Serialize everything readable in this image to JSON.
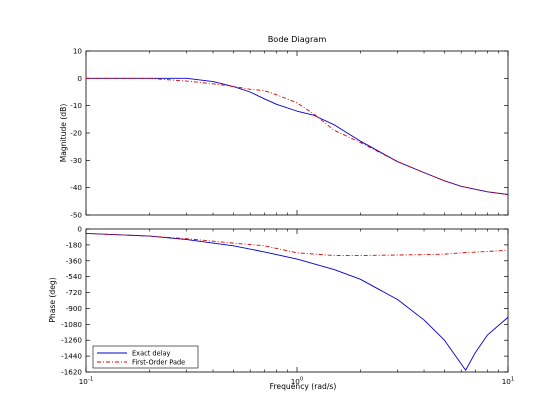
{
  "chart_data": {
    "type": "line",
    "title": "Bode Diagram",
    "xlabel": "Frequency  (rad/s)",
    "x_scale": "log",
    "xlim": [
      0.1,
      10
    ],
    "x_ticks": [
      {
        "value": 0.1,
        "base": "10",
        "exp": "-1"
      },
      {
        "value": 1,
        "base": "10",
        "exp": "0"
      },
      {
        "value": 10,
        "base": "10",
        "exp": "1"
      }
    ],
    "grid": false,
    "legend": {
      "placement": "bottom-left",
      "axis": "phase"
    },
    "colors": {
      "exact": "#0000cc",
      "pade": "#dd0000"
    },
    "panels": [
      {
        "id": "magnitude",
        "ylabel": "Magnitude (dB)",
        "ylim": [
          -50,
          10
        ],
        "yticks": [
          "10",
          "0",
          "-10",
          "-20",
          "-30",
          "-40",
          "-50"
        ],
        "ytick_values": [
          10,
          0,
          -10,
          -20,
          -30,
          -40,
          -50
        ],
        "series": [
          {
            "key": "exact",
            "x": [
              0.1,
              0.2,
              0.3,
              0.4,
              0.5,
              0.6,
              0.7,
              0.8,
              1.0,
              1.2,
              1.5,
              2,
              3,
              4,
              5,
              6,
              8,
              10
            ],
            "y": [
              0,
              0,
              0,
              -1.2,
              -3,
              -5,
              -7.5,
              -9.5,
              -12,
              -13.5,
              -17,
              -23,
              -30.5,
              -34.5,
              -37.5,
              -39.5,
              -41.5,
              -42.5
            ]
          },
          {
            "key": "pade",
            "x": [
              0.1,
              0.2,
              0.3,
              0.4,
              0.5,
              0.6,
              0.7,
              0.8,
              1.0,
              1.2,
              1.5,
              2,
              3,
              4,
              5,
              6,
              8,
              10
            ],
            "y": [
              0,
              0,
              -1,
              -2,
              -3,
              -4,
              -4.5,
              -6,
              -9,
              -13,
              -19,
              -23.5,
              -30.5,
              -34.5,
              -37.5,
              -39.5,
              -41.5,
              -42.5
            ]
          }
        ]
      },
      {
        "id": "phase",
        "ylabel": "Phase (deg)",
        "ylim": [
          -1620,
          0
        ],
        "yticks": [
          "0",
          "-180",
          "-360",
          "-540",
          "-720",
          "-900",
          "-1080",
          "-1260",
          "-1440",
          "-1620"
        ],
        "ytick_values": [
          0,
          -180,
          -360,
          -540,
          -720,
          -900,
          -1080,
          -1260,
          -1440,
          -1620
        ],
        "series": [
          {
            "key": "exact",
            "name": "Exact delay",
            "x": [
              0.1,
              0.2,
              0.3,
              0.5,
              0.7,
              1.0,
              1.5,
              2,
              3,
              4,
              5,
              6.3,
              7,
              8,
              10
            ],
            "y": [
              -50,
              -80,
              -120,
              -190,
              -260,
              -340,
              -460,
              -570,
              -800,
              -1030,
              -1260,
              -1600,
              -1400,
              -1200,
              -1000
            ]
          },
          {
            "key": "pade",
            "name": "First-Order Pade",
            "x": [
              0.1,
              0.2,
              0.3,
              0.5,
              0.7,
              1.0,
              1.5,
              2,
              3,
              4,
              5,
              6,
              8,
              10
            ],
            "y": [
              -50,
              -80,
              -110,
              -160,
              -190,
              -270,
              -300,
              -300,
              -295,
              -290,
              -285,
              -270,
              -255,
              -240
            ]
          }
        ]
      }
    ]
  }
}
